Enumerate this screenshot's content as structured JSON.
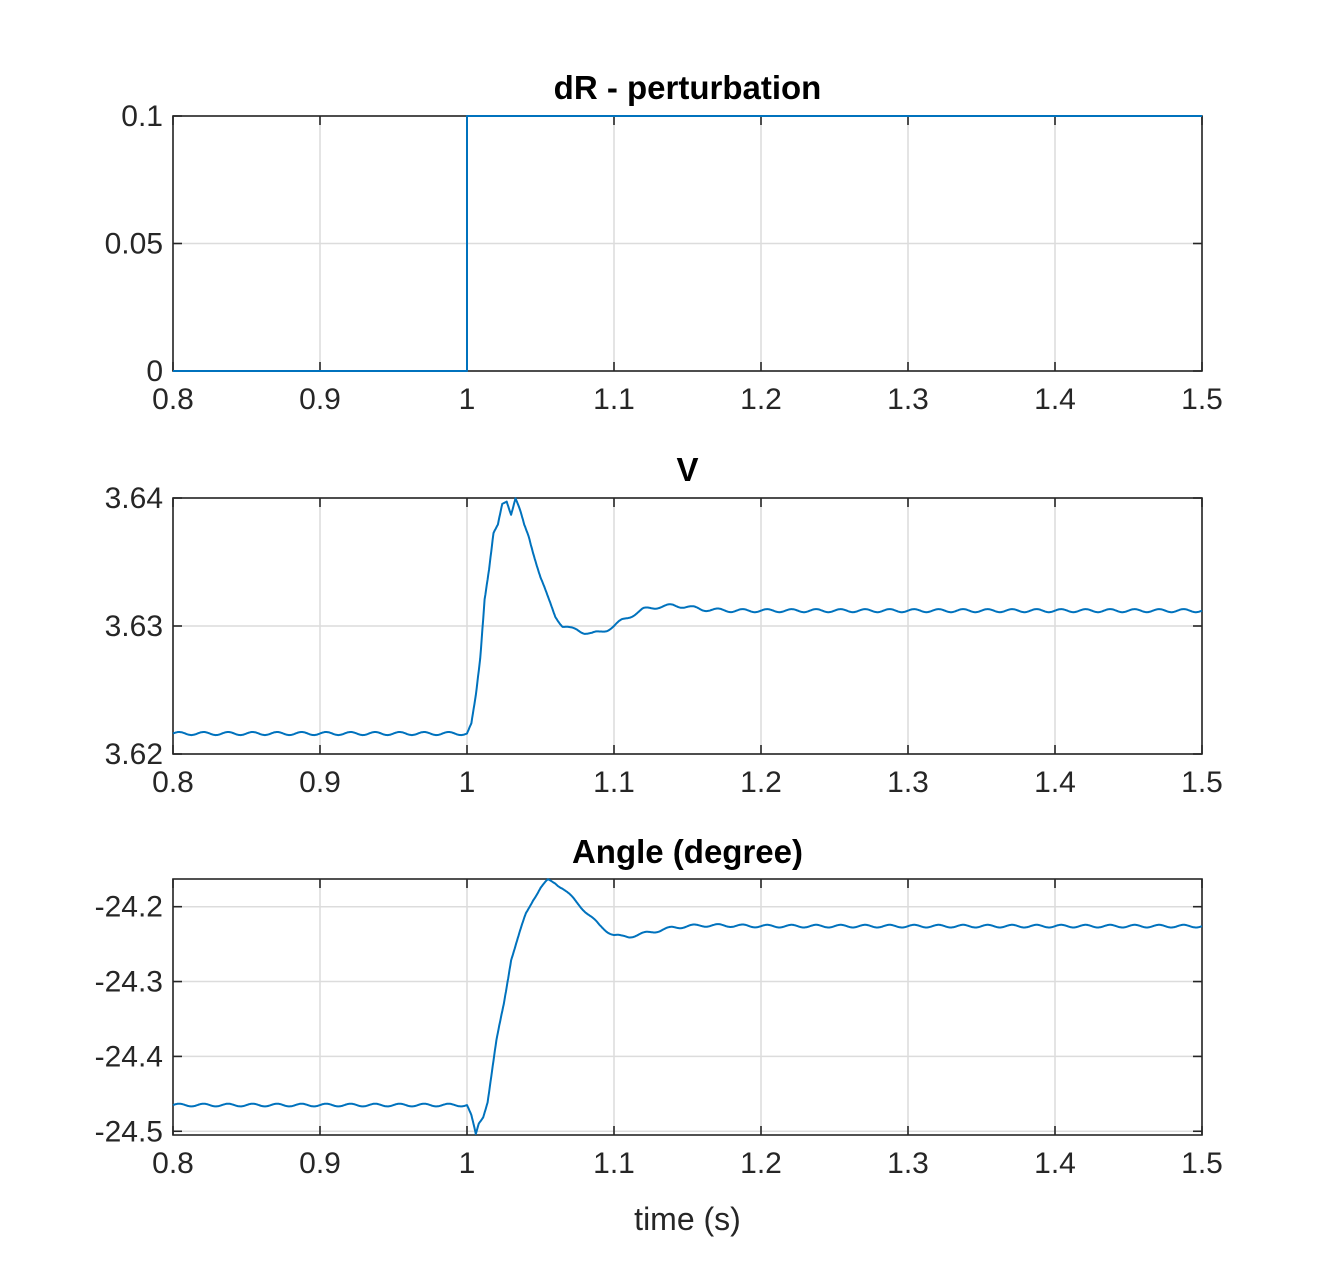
{
  "colors": {
    "series": "#0072bd"
  },
  "chart_data": [
    {
      "type": "line",
      "title": "dR - perturbation",
      "xlabel": "",
      "ylabel": "",
      "xlim": [
        0.8,
        1.5
      ],
      "ylim": [
        0,
        0.1
      ],
      "xticks": [
        "0.8",
        "0.9",
        "1",
        "1.1",
        "1.2",
        "1.3",
        "1.4",
        "1.5"
      ],
      "yticks": [
        "0",
        "0.05",
        "0.1"
      ],
      "grid": true,
      "series": [
        {
          "x": [
            0.8,
            1.0,
            1.0,
            1.5
          ],
          "y": [
            0,
            0,
            0.1,
            0.1
          ]
        }
      ]
    },
    {
      "type": "line",
      "title": "V",
      "xlabel": "",
      "ylabel": "",
      "xlim": [
        0.8,
        1.5
      ],
      "ylim": [
        3.62,
        3.64
      ],
      "xticks": [
        "0.8",
        "0.9",
        "1",
        "1.1",
        "1.2",
        "1.3",
        "1.4",
        "1.5"
      ],
      "yticks": [
        "3.62",
        "3.63",
        "3.64"
      ],
      "grid": true,
      "series": [
        {
          "x": [
            0.8,
            0.85,
            0.9,
            0.95,
            1.0,
            1.003,
            1.006,
            1.009,
            1.012,
            1.015,
            1.018,
            1.021,
            1.024,
            1.027,
            1.03,
            1.033,
            1.036,
            1.039,
            1.042,
            1.045,
            1.05,
            1.055,
            1.06,
            1.065,
            1.07,
            1.075,
            1.08,
            1.085,
            1.09,
            1.095,
            1.1,
            1.105,
            1.11,
            1.115,
            1.12,
            1.13,
            1.14,
            1.15,
            1.16,
            1.18,
            1.2,
            1.25,
            1.3,
            1.35,
            1.4,
            1.45,
            1.5
          ],
          "y": [
            3.6216,
            3.6216,
            3.6216,
            3.6216,
            3.6216,
            3.6223,
            3.6245,
            3.6275,
            3.6322,
            3.6345,
            3.6372,
            3.6378,
            3.6395,
            3.6398,
            3.6388,
            3.64,
            3.639,
            3.6378,
            3.637,
            3.6358,
            3.6338,
            3.6322,
            3.6308,
            3.63,
            3.6298,
            3.6297,
            3.6295,
            3.6294,
            3.6295,
            3.6297,
            3.63,
            3.6304,
            3.6307,
            3.631,
            3.6313,
            3.6315,
            3.6316,
            3.6315,
            3.6313,
            3.6312,
            3.6312,
            3.6312,
            3.6312,
            3.6312,
            3.6312,
            3.6312,
            3.6312
          ],
          "ripple": 0.00012
        }
      ]
    },
    {
      "type": "line",
      "title": "Angle (degree)",
      "xlabel": "time (s)",
      "ylabel": "",
      "xlim": [
        0.8,
        1.5
      ],
      "ylim": [
        -24.505,
        -24.163
      ],
      "xticks": [
        "0.8",
        "0.9",
        "1",
        "1.1",
        "1.2",
        "1.3",
        "1.4",
        "1.5"
      ],
      "yticks": [
        "-24.5",
        "-24.4",
        "-24.3",
        "-24.2"
      ],
      "grid": true,
      "series": [
        {
          "x": [
            0.8,
            0.85,
            0.9,
            0.95,
            1.0,
            1.003,
            1.006,
            1.008,
            1.011,
            1.014,
            1.017,
            1.02,
            1.025,
            1.03,
            1.035,
            1.04,
            1.045,
            1.05,
            1.055,
            1.06,
            1.065,
            1.07,
            1.075,
            1.08,
            1.085,
            1.09,
            1.095,
            1.1,
            1.105,
            1.11,
            1.115,
            1.12,
            1.13,
            1.14,
            1.15,
            1.16,
            1.17,
            1.2,
            1.25,
            1.3,
            1.35,
            1.4,
            1.45,
            1.5
          ],
          "y": [
            -24.465,
            -24.465,
            -24.465,
            -24.465,
            -24.465,
            -24.48,
            -24.505,
            -24.49,
            -24.48,
            -24.46,
            -24.42,
            -24.38,
            -24.33,
            -24.27,
            -24.24,
            -24.21,
            -24.19,
            -24.175,
            -24.165,
            -24.168,
            -24.175,
            -24.185,
            -24.195,
            -24.205,
            -24.215,
            -24.225,
            -24.232,
            -24.238,
            -24.24,
            -24.24,
            -24.238,
            -24.236,
            -24.232,
            -24.228,
            -24.226,
            -24.225,
            -24.225,
            -24.226,
            -24.226,
            -24.226,
            -24.226,
            -24.226,
            -24.226,
            -24.226
          ],
          "ripple": 0.0018
        }
      ]
    }
  ]
}
